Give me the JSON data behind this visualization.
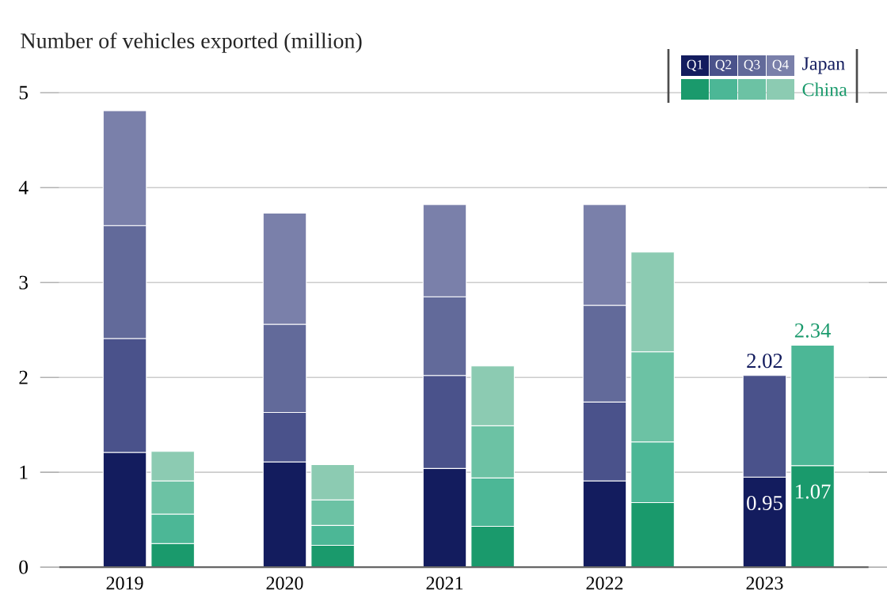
{
  "chart_data": {
    "type": "bar",
    "stacked": true,
    "ylabel": "Number of vehicles exported (million)",
    "categories": [
      "2019",
      null,
      "2020",
      null,
      "2021",
      null,
      "2022",
      null,
      "2023",
      null
    ],
    "ylim": [
      0,
      5
    ],
    "yticks": [
      0,
      1,
      2,
      3,
      4,
      5
    ],
    "grid": "y",
    "legend": "top right",
    "annotations": [
      "Japan",
      "China"
    ],
    "totals": [
      null,
      null,
      null,
      null,
      null,
      null,
      null,
      null,
      "2.02",
      "2.34"
    ],
    "series": [
      {
        "name": "Q1",
        "color": "#131c5e",
        "values": [
          1.21,
          null,
          1.11,
          null,
          1.04,
          null,
          0.91,
          null,
          0.95,
          null
        ],
        "value_labels": [
          null,
          null,
          null,
          null,
          null,
          null,
          null,
          null,
          "0.95",
          null
        ]
      },
      {
        "name": "Q2",
        "color": "#4a528b",
        "values": [
          1.2,
          null,
          0.52,
          null,
          0.98,
          null,
          0.83,
          null,
          1.07,
          null
        ]
      },
      {
        "name": "Q3",
        "color": "#626a9a",
        "values": [
          1.19,
          null,
          0.93,
          null,
          0.83,
          null,
          1.02,
          null,
          null,
          null
        ]
      },
      {
        "name": "Q4",
        "color": "#7a80aa",
        "values": [
          1.21,
          null,
          1.17,
          null,
          0.97,
          null,
          1.06,
          null,
          null,
          null
        ]
      },
      {
        "color": "#1a9a6c",
        "values": [
          null,
          0.25,
          null,
          0.23,
          null,
          0.43,
          null,
          0.68,
          null,
          1.07
        ],
        "value_labels": [
          null,
          null,
          null,
          null,
          null,
          null,
          null,
          null,
          null,
          "1.07"
        ]
      },
      {
        "color": "#4cb796",
        "values": [
          null,
          0.31,
          null,
          0.21,
          null,
          0.51,
          null,
          0.64,
          null,
          1.27
        ]
      },
      {
        "color": "#6cc2a4",
        "values": [
          null,
          0.35,
          null,
          0.27,
          null,
          0.55,
          null,
          0.95,
          null,
          null
        ]
      },
      {
        "color": "#8ccbb2",
        "values": [
          null,
          0.31,
          null,
          0.37,
          null,
          0.63,
          null,
          1.05,
          null,
          null
        ]
      }
    ]
  }
}
